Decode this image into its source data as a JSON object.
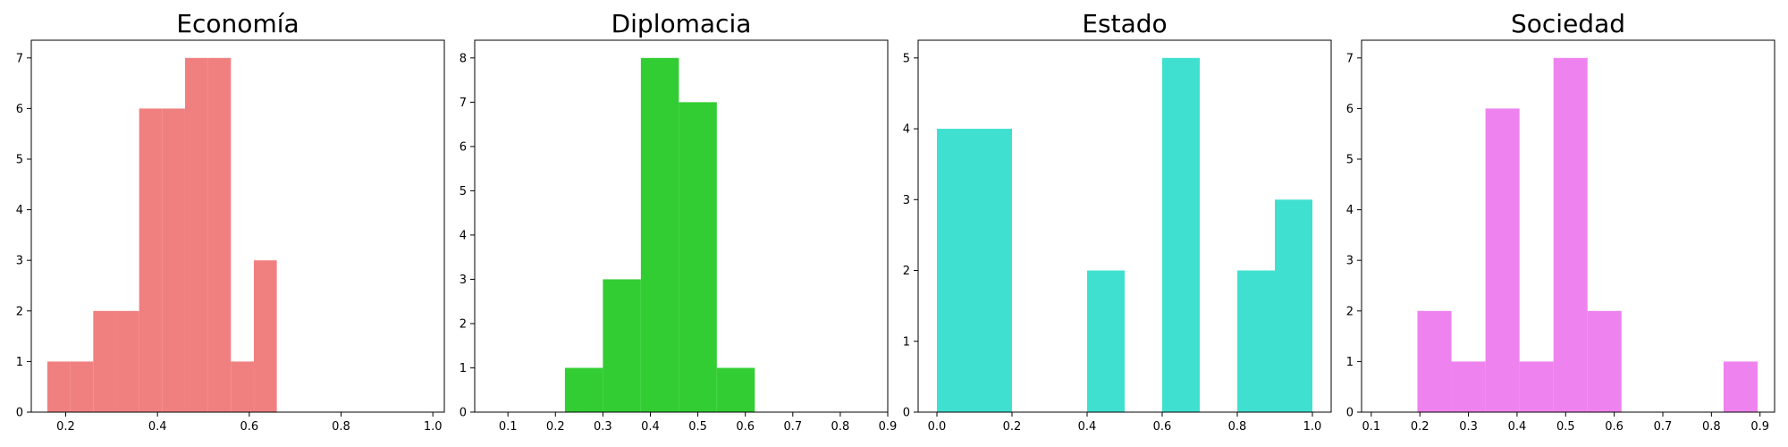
{
  "chart_data": [
    {
      "type": "bar",
      "title": "Economía",
      "color": "#f08080",
      "xlim": [
        0.125,
        1.025
      ],
      "ylim": [
        0,
        7.35
      ],
      "xticks": [
        0.2,
        0.4,
        0.6,
        0.8,
        1.0
      ],
      "xtick_labels": [
        "0.2",
        "0.4",
        "0.6",
        "0.8",
        "1.0"
      ],
      "yticks": [
        0,
        1,
        2,
        3,
        4,
        5,
        6,
        7
      ],
      "ytick_labels": [
        "0",
        "1",
        "2",
        "3",
        "4",
        "5",
        "6",
        "7"
      ],
      "bins": [
        0.16,
        0.21,
        0.26,
        0.31,
        0.36,
        0.41,
        0.46,
        0.51,
        0.56,
        0.61,
        0.66
      ],
      "counts": [
        1,
        1,
        2,
        2,
        6,
        6,
        7,
        7,
        1,
        3
      ]
    },
    {
      "type": "bar",
      "title": "Diplomacia",
      "color": "#32cd32",
      "xlim": [
        0.03,
        0.9
      ],
      "ylim": [
        0,
        8.4
      ],
      "xticks": [
        0.1,
        0.2,
        0.3,
        0.4,
        0.5,
        0.6,
        0.7,
        0.8,
        0.9
      ],
      "xtick_labels": [
        "0.1",
        "0.2",
        "0.3",
        "0.4",
        "0.5",
        "0.6",
        "0.7",
        "0.8",
        "0.9"
      ],
      "yticks": [
        0,
        1,
        2,
        3,
        4,
        5,
        6,
        7,
        8
      ],
      "ytick_labels": [
        "0",
        "1",
        "2",
        "3",
        "4",
        "5",
        "6",
        "7",
        "8"
      ],
      "bins": [
        0.22,
        0.3,
        0.38,
        0.46,
        0.54,
        0.62
      ],
      "counts": [
        1,
        3,
        8,
        7,
        1
      ]
    },
    {
      "type": "bar",
      "title": "Estado",
      "color": "#40e0d0",
      "xlim": [
        -0.05,
        1.05
      ],
      "ylim": [
        0,
        5.25
      ],
      "xticks": [
        0.0,
        0.2,
        0.4,
        0.6,
        0.8,
        1.0
      ],
      "xtick_labels": [
        "0.0",
        "0.2",
        "0.4",
        "0.6",
        "0.8",
        "1.0"
      ],
      "yticks": [
        0,
        1,
        2,
        3,
        4,
        5
      ],
      "ytick_labels": [
        "0",
        "1",
        "2",
        "3",
        "4",
        "5"
      ],
      "bins": [
        0.0,
        0.1,
        0.2,
        0.3,
        0.4,
        0.5,
        0.6,
        0.7,
        0.8,
        0.9,
        1.0
      ],
      "counts": [
        4,
        4,
        0,
        0,
        2,
        0,
        5,
        0,
        2,
        3
      ]
    },
    {
      "type": "bar",
      "title": "Sociedad",
      "color": "#ee82ee",
      "xlim": [
        0.08,
        0.93
      ],
      "ylim": [
        0,
        7.35
      ],
      "xticks": [
        0.1,
        0.2,
        0.3,
        0.4,
        0.5,
        0.6,
        0.7,
        0.8,
        0.9
      ],
      "xtick_labels": [
        "0.1",
        "0.2",
        "0.3",
        "0.4",
        "0.5",
        "0.6",
        "0.7",
        "0.8",
        "0.9"
      ],
      "yticks": [
        0,
        1,
        2,
        3,
        4,
        5,
        6,
        7
      ],
      "ytick_labels": [
        "0",
        "1",
        "2",
        "3",
        "4",
        "5",
        "6",
        "7"
      ],
      "bins": [
        0.195,
        0.265,
        0.335,
        0.405,
        0.475,
        0.545,
        0.615,
        0.685,
        0.755,
        0.825,
        0.895
      ],
      "counts": [
        2,
        1,
        6,
        1,
        7,
        2,
        0,
        0,
        0,
        1
      ]
    }
  ]
}
